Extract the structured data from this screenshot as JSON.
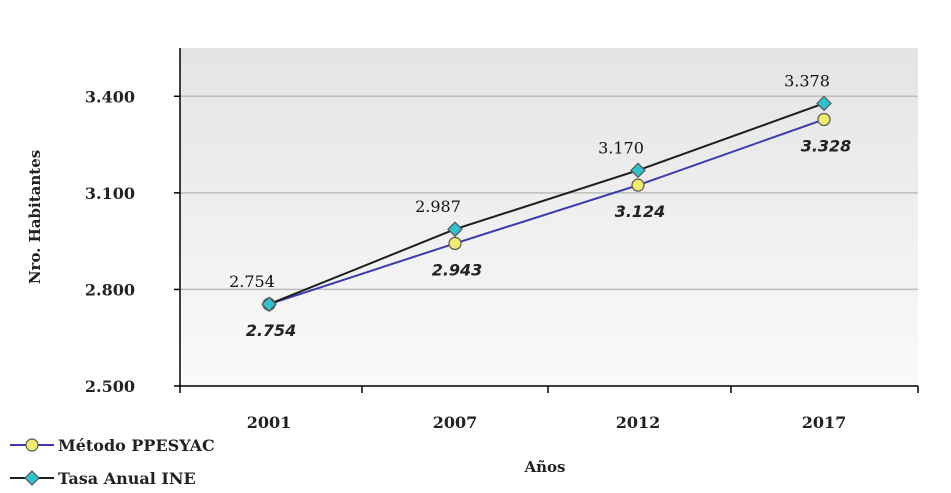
{
  "chart_data": {
    "type": "line",
    "categories": [
      "2001",
      "2007",
      "2012",
      "2017"
    ],
    "series": [
      {
        "name": "Método PPESYAC",
        "values": [
          2754,
          2943,
          3124,
          3328
        ],
        "labels": [
          "2.754",
          "2.943",
          "3.124",
          "3.328"
        ],
        "marker_color": "#f2ec6e",
        "line_color": "#3b3bb0"
      },
      {
        "name": "Tasa Anual INE",
        "values": [
          2754,
          2987,
          3170,
          3378
        ],
        "labels": [
          "2.754",
          "2.987",
          "3.170",
          "3.378"
        ],
        "marker_color": "#2ec4cf",
        "line_color": "#1e1e1e"
      }
    ],
    "y_ticks": [
      2500,
      2800,
      3100,
      3400
    ],
    "y_tick_labels": [
      "2.500",
      "2.800",
      "3.100",
      "3.400"
    ],
    "ylim": [
      2500,
      3550
    ],
    "xlabel": "Años",
    "ylabel": "Nro. Habitantes",
    "grid": true,
    "legend_position": "bottom-left"
  }
}
